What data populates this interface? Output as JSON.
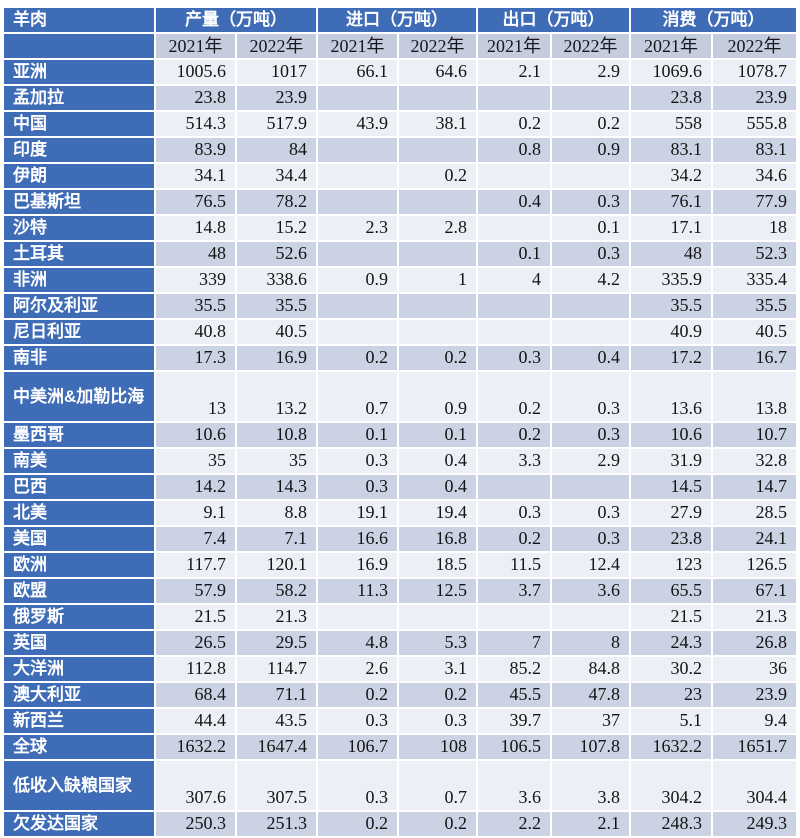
{
  "colors": {
    "header-blue": "#3F6CB6",
    "band-light": "#EDEFF6",
    "band-dark": "#CBD2E3",
    "yearrow-bg": "#C5CCDD"
  },
  "table": {
    "corner_label": "羊肉",
    "groups": [
      {
        "label": "产量（万吨）"
      },
      {
        "label": "进口（万吨）"
      },
      {
        "label": "出口（万吨）"
      },
      {
        "label": "消费（万吨）"
      }
    ],
    "year_headers": [
      "2021年",
      "2022年",
      "2021年",
      "2022年",
      "2021年",
      "2022年",
      "2021年",
      "2022年"
    ],
    "rows": [
      {
        "label": "亚洲",
        "tall": false,
        "values": [
          "1005.6",
          "1017",
          "66.1",
          "64.6",
          "2.1",
          "2.9",
          "1069.6",
          "1078.7"
        ]
      },
      {
        "label": "孟加拉",
        "tall": false,
        "values": [
          "23.8",
          "23.9",
          "",
          "",
          "",
          "",
          "23.8",
          "23.9"
        ]
      },
      {
        "label": "中国",
        "tall": false,
        "values": [
          "514.3",
          "517.9",
          "43.9",
          "38.1",
          "0.2",
          "0.2",
          "558",
          "555.8"
        ]
      },
      {
        "label": "印度",
        "tall": false,
        "values": [
          "83.9",
          "84",
          "",
          "",
          "0.8",
          "0.9",
          "83.1",
          "83.1"
        ]
      },
      {
        "label": "伊朗",
        "tall": false,
        "values": [
          "34.1",
          "34.4",
          "",
          "0.2",
          "",
          "",
          "34.2",
          "34.6"
        ]
      },
      {
        "label": "巴基斯坦",
        "tall": false,
        "values": [
          "76.5",
          "78.2",
          "",
          "",
          "0.4",
          "0.3",
          "76.1",
          "77.9"
        ]
      },
      {
        "label": "沙特",
        "tall": false,
        "values": [
          "14.8",
          "15.2",
          "2.3",
          "2.8",
          "",
          "0.1",
          "17.1",
          "18"
        ]
      },
      {
        "label": "土耳其",
        "tall": false,
        "values": [
          "48",
          "52.6",
          "",
          "",
          "0.1",
          "0.3",
          "48",
          "52.3"
        ]
      },
      {
        "label": "非洲",
        "tall": false,
        "values": [
          "339",
          "338.6",
          "0.9",
          "1",
          "4",
          "4.2",
          "335.9",
          "335.4"
        ]
      },
      {
        "label": "阿尔及利亚",
        "tall": false,
        "values": [
          "35.5",
          "35.5",
          "",
          "",
          "",
          "",
          "35.5",
          "35.5"
        ]
      },
      {
        "label": "尼日利亚",
        "tall": false,
        "values": [
          "40.8",
          "40.5",
          "",
          "",
          "",
          "",
          "40.9",
          "40.5"
        ]
      },
      {
        "label": "南非",
        "tall": false,
        "values": [
          "17.3",
          "16.9",
          "0.2",
          "0.2",
          "0.3",
          "0.4",
          "17.2",
          "16.7"
        ]
      },
      {
        "label": "中美洲&加勒比海",
        "tall": true,
        "values": [
          "13",
          "13.2",
          "0.7",
          "0.9",
          "0.2",
          "0.3",
          "13.6",
          "13.8"
        ]
      },
      {
        "label": "墨西哥",
        "tall": false,
        "values": [
          "10.6",
          "10.8",
          "0.1",
          "0.1",
          "0.2",
          "0.3",
          "10.6",
          "10.7"
        ]
      },
      {
        "label": "南美",
        "tall": false,
        "values": [
          "35",
          "35",
          "0.3",
          "0.4",
          "3.3",
          "2.9",
          "31.9",
          "32.8"
        ]
      },
      {
        "label": "巴西",
        "tall": false,
        "values": [
          "14.2",
          "14.3",
          "0.3",
          "0.4",
          "",
          "",
          "14.5",
          "14.7"
        ]
      },
      {
        "label": "北美",
        "tall": false,
        "values": [
          "9.1",
          "8.8",
          "19.1",
          "19.4",
          "0.3",
          "0.3",
          "27.9",
          "28.5"
        ]
      },
      {
        "label": "美国",
        "tall": false,
        "values": [
          "7.4",
          "7.1",
          "16.6",
          "16.8",
          "0.2",
          "0.3",
          "23.8",
          "24.1"
        ]
      },
      {
        "label": "欧洲",
        "tall": false,
        "values": [
          "117.7",
          "120.1",
          "16.9",
          "18.5",
          "11.5",
          "12.4",
          "123",
          "126.5"
        ]
      },
      {
        "label": "欧盟",
        "tall": false,
        "values": [
          "57.9",
          "58.2",
          "11.3",
          "12.5",
          "3.7",
          "3.6",
          "65.5",
          "67.1"
        ]
      },
      {
        "label": "俄罗斯",
        "tall": false,
        "values": [
          "21.5",
          "21.3",
          "",
          "",
          "",
          "",
          "21.5",
          "21.3"
        ]
      },
      {
        "label": "英国",
        "tall": false,
        "values": [
          "26.5",
          "29.5",
          "4.8",
          "5.3",
          "7",
          "8",
          "24.3",
          "26.8"
        ]
      },
      {
        "label": "大洋洲",
        "tall": false,
        "values": [
          "112.8",
          "114.7",
          "2.6",
          "3.1",
          "85.2",
          "84.8",
          "30.2",
          "36"
        ]
      },
      {
        "label": "澳大利亚",
        "tall": false,
        "values": [
          "68.4",
          "71.1",
          "0.2",
          "0.2",
          "45.5",
          "47.8",
          "23",
          "23.9"
        ]
      },
      {
        "label": "新西兰",
        "tall": false,
        "values": [
          "44.4",
          "43.5",
          "0.3",
          "0.3",
          "39.7",
          "37",
          "5.1",
          "9.4"
        ]
      },
      {
        "label": "全球",
        "tall": false,
        "values": [
          "1632.2",
          "1647.4",
          "106.7",
          "108",
          "106.5",
          "107.8",
          "1632.2",
          "1651.7"
        ]
      },
      {
        "label": "低收入缺粮国家",
        "tall": true,
        "values": [
          "307.6",
          "307.5",
          "0.3",
          "0.7",
          "3.6",
          "3.8",
          "304.2",
          "304.4"
        ]
      },
      {
        "label": "欠发达国家",
        "tall": false,
        "values": [
          "250.3",
          "251.3",
          "0.2",
          "0.2",
          "2.2",
          "2.1",
          "248.3",
          "249.3"
        ]
      }
    ]
  }
}
